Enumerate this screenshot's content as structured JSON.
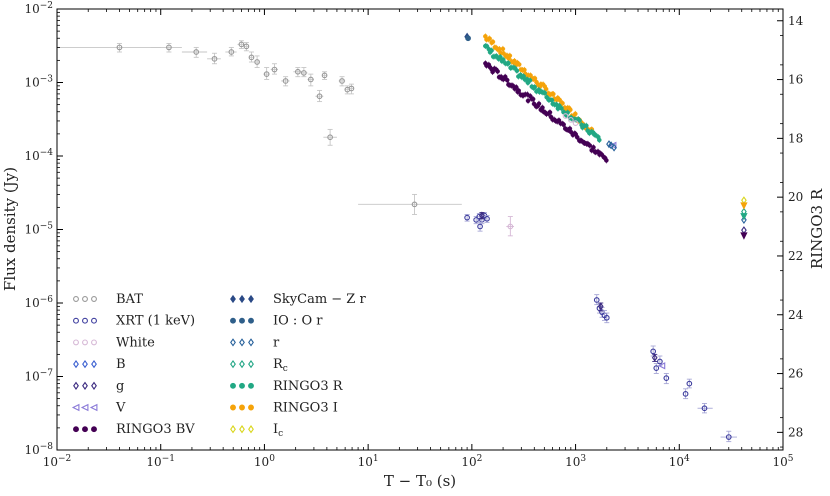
{
  "chart_data": {
    "type": "scatter",
    "xscale": "log",
    "yscale": "log",
    "xlabel": "T − T₀ (s)",
    "ylabel": "Flux density (Jy)",
    "y2label": "RINGO3 R",
    "xlim": [
      0.01,
      100000
    ],
    "ylim": [
      1e-08,
      0.01
    ],
    "y2lim": [
      13.6,
      28.6
    ],
    "x_ticks": [
      {
        "v": 0.01,
        "b": "10",
        "e": "−2"
      },
      {
        "v": 0.1,
        "b": "10",
        "e": "−1"
      },
      {
        "v": 1,
        "b": "10",
        "e": "0"
      },
      {
        "v": 10,
        "b": "10",
        "e": "1"
      },
      {
        "v": 100,
        "b": "10",
        "e": "2"
      },
      {
        "v": 1000,
        "b": "10",
        "e": "3"
      },
      {
        "v": 10000,
        "b": "10",
        "e": "4"
      },
      {
        "v": 100000,
        "b": "10",
        "e": "5"
      }
    ],
    "y_ticks": [
      {
        "v": 1e-08,
        "b": "10",
        "e": "−8"
      },
      {
        "v": 1e-07,
        "b": "10",
        "e": "−7"
      },
      {
        "v": 1e-06,
        "b": "10",
        "e": "−6"
      },
      {
        "v": 1e-05,
        "b": "10",
        "e": "−5"
      },
      {
        "v": 0.0001,
        "b": "10",
        "e": "−4"
      },
      {
        "v": 0.001,
        "b": "10",
        "e": "−3"
      },
      {
        "v": 0.01,
        "b": "10",
        "e": "−2"
      }
    ],
    "y2_ticks": [
      "14",
      "16",
      "18",
      "20",
      "22",
      "24",
      "26",
      "28"
    ],
    "legend_col1": [
      {
        "key": "bat",
        "label": "BAT",
        "marker": "circle",
        "filled": false,
        "color": "#999999"
      },
      {
        "key": "xrt",
        "label": "XRT (1 keV)",
        "marker": "circle",
        "filled": false,
        "color": "#3d3d9e"
      },
      {
        "key": "white",
        "label": "White",
        "marker": "circle",
        "filled": false,
        "color": "#d6b8d6"
      },
      {
        "key": "b",
        "label": "B",
        "marker": "diamond",
        "filled": false,
        "color": "#3a5fd0"
      },
      {
        "key": "g",
        "label": "g",
        "marker": "diamond",
        "filled": false,
        "color": "#3b2a80"
      },
      {
        "key": "v",
        "label": "V",
        "marker": "triangle-left",
        "filled": false,
        "color": "#8a7ad8"
      },
      {
        "key": "ringo_bv",
        "label": "RINGO3  BV",
        "marker": "circle",
        "filled": true,
        "color": "#440154"
      }
    ],
    "legend_col2": [
      {
        "key": "skycam",
        "label": "SkyCam − Z r",
        "marker": "diamond",
        "filled": true,
        "color": "#2b4a86"
      },
      {
        "key": "io",
        "label": "IO : O r",
        "marker": "circle",
        "filled": true,
        "color": "#2f5f8a"
      },
      {
        "key": "r",
        "label": "r",
        "marker": "diamond",
        "filled": false,
        "color": "#26609a"
      },
      {
        "key": "rc",
        "label": "R",
        "sub": "c",
        "marker": "diamond",
        "filled": false,
        "color": "#21a685"
      },
      {
        "key": "ringo_r",
        "label": "RINGO3  R",
        "marker": "circle",
        "filled": true,
        "color": "#22a884"
      },
      {
        "key": "ringo_i",
        "label": "RINGO3  I",
        "marker": "circle",
        "filled": true,
        "color": "#f5a30a"
      },
      {
        "key": "ic",
        "label": "I",
        "sub": "c",
        "marker": "diamond",
        "filled": false,
        "color": "#d9d61c"
      }
    ],
    "series": [
      {
        "key": "bat",
        "name": "BAT",
        "color": "#999999",
        "marker": "circle",
        "filled": false,
        "points": [
          {
            "x": 0.04,
            "y": 0.003,
            "xl": 0.01,
            "xh": 0.1,
            "yl": 0.0026,
            "yh": 0.0034
          },
          {
            "x": 0.12,
            "y": 0.003,
            "xl": 0.08,
            "xh": 0.16,
            "yl": 0.0026,
            "yh": 0.0034
          },
          {
            "x": 0.22,
            "y": 0.0026,
            "xl": 0.16,
            "xh": 0.28,
            "yl": 0.0022,
            "yh": 0.003
          },
          {
            "x": 0.33,
            "y": 0.0021,
            "xl": 0.28,
            "xh": 0.38,
            "yl": 0.0018,
            "yh": 0.0025
          },
          {
            "x": 0.48,
            "y": 0.0026,
            "xl": 0.42,
            "xh": 0.54,
            "yl": 0.0023,
            "yh": 0.003
          },
          {
            "x": 0.6,
            "y": 0.0033,
            "xl": 0.55,
            "xh": 0.65,
            "yl": 0.0029,
            "yh": 0.0037
          },
          {
            "x": 0.67,
            "y": 0.0031,
            "xl": 0.63,
            "xh": 0.71,
            "yl": 0.0027,
            "yh": 0.0035
          },
          {
            "x": 0.75,
            "y": 0.0022,
            "xl": 0.71,
            "xh": 0.79,
            "yl": 0.0019,
            "yh": 0.0026
          },
          {
            "x": 0.85,
            "y": 0.0019,
            "xl": 0.8,
            "xh": 0.9,
            "yl": 0.0016,
            "yh": 0.0023
          },
          {
            "x": 1.05,
            "y": 0.0013,
            "xl": 0.98,
            "xh": 1.12,
            "yl": 0.0011,
            "yh": 0.0016
          },
          {
            "x": 1.25,
            "y": 0.0015,
            "xl": 1.15,
            "xh": 1.35,
            "yl": 0.0013,
            "yh": 0.0018
          },
          {
            "x": 1.6,
            "y": 0.00105,
            "xl": 1.45,
            "xh": 1.75,
            "yl": 0.0009,
            "yh": 0.0012
          },
          {
            "x": 2.1,
            "y": 0.0014,
            "xl": 1.9,
            "xh": 2.3,
            "yl": 0.0012,
            "yh": 0.0016
          },
          {
            "x": 2.4,
            "y": 0.00135,
            "xl": 2.2,
            "xh": 2.6,
            "yl": 0.0012,
            "yh": 0.0016
          },
          {
            "x": 2.8,
            "y": 0.0011,
            "xl": 2.6,
            "xh": 3.0,
            "yl": 0.0009,
            "yh": 0.0013
          },
          {
            "x": 3.4,
            "y": 0.00065,
            "xl": 3.1,
            "xh": 3.7,
            "yl": 0.00055,
            "yh": 0.00078
          },
          {
            "x": 3.8,
            "y": 0.00125,
            "xl": 3.6,
            "xh": 4.0,
            "yl": 0.0011,
            "yh": 0.0014
          },
          {
            "x": 5.6,
            "y": 0.00105,
            "xl": 5.2,
            "xh": 6.0,
            "yl": 0.0009,
            "yh": 0.0012
          },
          {
            "x": 6.3,
            "y": 0.0008,
            "xl": 6.0,
            "xh": 6.6,
            "yl": 0.0007,
            "yh": 0.0009
          },
          {
            "x": 6.9,
            "y": 0.00083,
            "xl": 6.6,
            "xh": 7.2,
            "yl": 0.0007,
            "yh": 0.00095
          },
          {
            "x": 4.3,
            "y": 0.00018,
            "xl": 3.7,
            "xh": 5.0,
            "yl": 0.00014,
            "yh": 0.00023
          },
          {
            "x": 28,
            "y": 2.2e-05,
            "xl": 8,
            "xh": 80,
            "yl": 1.6e-05,
            "yh": 3e-05
          }
        ]
      },
      {
        "key": "xrt",
        "name": "XRT (1 keV)",
        "color": "#3d3d9e",
        "marker": "circle",
        "filled": false,
        "points": [
          {
            "x": 90,
            "y": 1.45e-05,
            "yl": 1.3e-05,
            "yh": 1.6e-05
          },
          {
            "x": 110,
            "y": 1.35e-05,
            "yl": 1.2e-05,
            "yh": 1.5e-05
          },
          {
            "x": 118,
            "y": 1.5e-05,
            "yl": 1.35e-05,
            "yh": 1.65e-05
          },
          {
            "x": 125,
            "y": 1.35e-05,
            "yl": 1.2e-05,
            "yh": 1.5e-05
          },
          {
            "x": 132,
            "y": 1.55e-05,
            "yl": 1.4e-05,
            "yh": 1.7e-05
          },
          {
            "x": 140,
            "y": 1.4e-05,
            "yl": 1.25e-05,
            "yh": 1.55e-05
          },
          {
            "x": 120,
            "y": 1.1e-05,
            "yl": 9.5e-06,
            "yh": 1.25e-05
          },
          {
            "x": 1600,
            "y": 1.1e-06,
            "yl": 9.5e-07,
            "yh": 1.3e-06
          },
          {
            "x": 1700,
            "y": 8.5e-07,
            "yl": 7.3e-07,
            "yh": 9.7e-07
          },
          {
            "x": 1800,
            "y": 7.5e-07,
            "yl": 6.4e-07,
            "yh": 8.7e-07
          },
          {
            "x": 1900,
            "y": 6.8e-07,
            "yl": 5.8e-07,
            "yh": 7.9e-07
          },
          {
            "x": 2000,
            "y": 6.3e-07,
            "yl": 5.4e-07,
            "yh": 7.3e-07
          },
          {
            "x": 5600,
            "y": 2.2e-07,
            "yl": 1.9e-07,
            "yh": 2.6e-07
          },
          {
            "x": 6000,
            "y": 1.3e-07,
            "yl": 1.1e-07,
            "yh": 1.5e-07
          },
          {
            "x": 6500,
            "y": 1.6e-07,
            "yl": 1.4e-07,
            "yh": 1.9e-07
          },
          {
            "x": 7500,
            "y": 9.5e-08,
            "yl": 8e-08,
            "yh": 1.1e-07
          },
          {
            "x": 11500,
            "y": 5.8e-08,
            "yl": 5e-08,
            "yh": 6.8e-08
          },
          {
            "x": 12500,
            "y": 8e-08,
            "yl": 7e-08,
            "yh": 9.2e-08
          },
          {
            "x": 17500,
            "y": 3.7e-08,
            "xl": 15000,
            "xh": 21000,
            "yl": 3.2e-08,
            "yh": 4.3e-08
          },
          {
            "x": 30000,
            "y": 1.5e-08,
            "xl": 25000,
            "xh": 36000,
            "yl": 1.3e-08,
            "yh": 1.8e-08
          }
        ]
      },
      {
        "key": "white",
        "name": "White",
        "color": "#d6b8d6",
        "marker": "circle",
        "filled": false,
        "points": [
          {
            "x": 235,
            "y": 1.1e-05,
            "xl": 215,
            "xh": 255,
            "yl": 8.2e-06,
            "yh": 1.5e-05
          },
          {
            "x": 800,
            "y": 0.00035
          },
          {
            "x": 900,
            "y": 0.00031
          },
          {
            "x": 1000,
            "y": 0.00028
          }
        ]
      },
      {
        "key": "g",
        "name": "g",
        "color": "#3b2a80",
        "marker": "diamond",
        "filled": false,
        "points": [
          {
            "x": 125,
            "y": 1.55e-05,
            "yl": 1.4e-05,
            "yh": 1.7e-05
          },
          {
            "x": 1750,
            "y": 9e-07,
            "yl": 7.8e-07,
            "yh": 1e-06
          },
          {
            "x": 5800,
            "y": 1.8e-07,
            "yl": 1.6e-07,
            "yh": 2e-07
          },
          {
            "x": 42000,
            "y": 9.8e-06
          }
        ]
      },
      {
        "key": "v",
        "name": "V",
        "color": "#8a7ad8",
        "marker": "triangle-left",
        "filled": false,
        "points": [
          {
            "x": 2300,
            "y": 0.00014
          },
          {
            "x": 6800,
            "y": 1.4e-07
          }
        ]
      },
      {
        "key": "skycam",
        "name": "SkyCam − Z r",
        "color": "#2b4a86",
        "marker": "diamond",
        "filled": true,
        "points": [
          {
            "x": 90,
            "y": 0.0042
          }
        ]
      },
      {
        "key": "io",
        "name": "IO : O r",
        "color": "#2f5f8a",
        "marker": "circle",
        "filled": true,
        "points": [
          {
            "x": 92,
            "y": 0.004
          }
        ]
      },
      {
        "key": "r",
        "name": "r",
        "color": "#26609a",
        "marker": "diamond",
        "filled": false,
        "points": [
          {
            "x": 2100,
            "y": 0.000145
          },
          {
            "x": 2200,
            "y": 0.00014
          },
          {
            "x": 2350,
            "y": 0.00013
          },
          {
            "x": 42000,
            "y": 1.35e-05
          }
        ]
      },
      {
        "key": "rc",
        "name": "Rc",
        "color": "#21a685",
        "marker": "diamond",
        "filled": false,
        "points": [
          {
            "x": 42000,
            "y": 1.75e-05
          }
        ]
      },
      {
        "key": "ic",
        "name": "Ic",
        "color": "#d9d61c",
        "marker": "diamond",
        "filled": false,
        "points": [
          {
            "x": 42000,
            "y": 2.5e-05
          }
        ]
      },
      {
        "key": "ulim_ringo_i",
        "name": "RINGO3 I upper limit",
        "color": "#f5a30a",
        "marker": "arrow-down",
        "filled": true,
        "points": [
          {
            "x": 42000,
            "y": 2.1e-05
          }
        ]
      },
      {
        "key": "ulim_ringo_r",
        "name": "RINGO3 R upper limit",
        "color": "#22a884",
        "marker": "arrow-down",
        "filled": true,
        "points": [
          {
            "x": 42000,
            "y": 1.5e-05
          }
        ]
      },
      {
        "key": "ulim_ringo_bv",
        "name": "RINGO3 BV upper limit",
        "color": "#440154",
        "marker": "arrow-down",
        "filled": true,
        "points": [
          {
            "x": 42000,
            "y": 8.2e-06
          }
        ]
      }
    ],
    "dense_series": [
      {
        "key": "ringo_i",
        "name": "RINGO3  I",
        "color": "#f5a30a",
        "x_start": 135,
        "x_end": 1450,
        "y_start": 0.0042,
        "y_end": 0.00022,
        "n": 70,
        "scatter": 0.08
      },
      {
        "key": "ringo_r",
        "name": "RINGO3  R",
        "color": "#22a884",
        "x_start": 135,
        "x_end": 1700,
        "y_start": 0.003,
        "y_end": 0.00017,
        "n": 70,
        "scatter": 0.08
      },
      {
        "key": "ringo_bv",
        "name": "RINGO3  BV",
        "color": "#440154",
        "x_start": 135,
        "x_end": 2000,
        "y_start": 0.0018,
        "y_end": 8.8e-05,
        "n": 80,
        "scatter": 0.08
      }
    ]
  }
}
